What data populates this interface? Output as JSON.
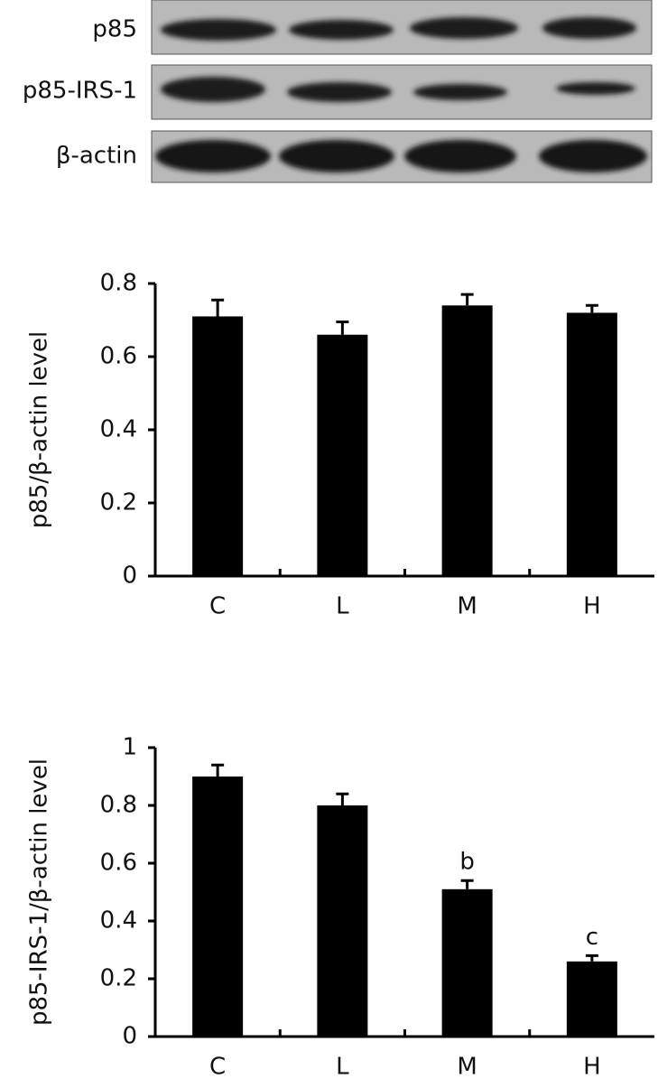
{
  "blot": {
    "labels": [
      "p85",
      "p85-IRS-1",
      "β-actin"
    ]
  },
  "chart_data": [
    {
      "type": "bar",
      "ylabel": "p85/β-actin level",
      "categories": [
        "C",
        "L",
        "M",
        "H"
      ],
      "values": [
        0.71,
        0.66,
        0.74,
        0.72
      ],
      "errors": [
        0.045,
        0.035,
        0.03,
        0.02
      ],
      "color": "#000000",
      "ylim": [
        0,
        0.8
      ],
      "yticks": [
        0,
        0.2,
        0.4,
        0.6,
        0.8
      ]
    },
    {
      "type": "bar",
      "ylabel": "p85-IRS-1/β-actin level",
      "categories": [
        "C",
        "L",
        "M",
        "H"
      ],
      "values": [
        0.9,
        0.8,
        0.51,
        0.26
      ],
      "errors": [
        0.04,
        0.04,
        0.03,
        0.02
      ],
      "color": "#000000",
      "annotations": [
        null,
        null,
        "b",
        "c"
      ],
      "ylim": [
        0,
        1
      ],
      "yticks": [
        0,
        0.2,
        0.4,
        0.6,
        0.8,
        1
      ]
    }
  ]
}
